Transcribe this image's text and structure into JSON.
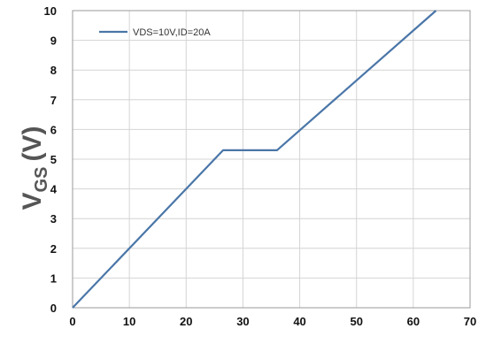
{
  "chart_data": {
    "type": "line",
    "title": "",
    "xlabel": "",
    "ylabel": {
      "main": "V",
      "subscript": "GS",
      "unit": "(V)"
    },
    "xlim": [
      0,
      70
    ],
    "ylim": [
      0,
      10
    ],
    "x_ticks": [
      "0",
      "10",
      "20",
      "30",
      "40",
      "50",
      "60",
      "70"
    ],
    "y_ticks": [
      "0",
      "1",
      "2",
      "3",
      "4",
      "5",
      "6",
      "7",
      "8",
      "9",
      "10"
    ],
    "grid": true,
    "legend_position": "top-left",
    "series": [
      {
        "name": "VDS=10V,ID=20A",
        "color": "#4a76a8",
        "x": [
          0,
          26.5,
          36,
          64
        ],
        "y": [
          0,
          5.3,
          5.3,
          10
        ]
      }
    ]
  }
}
